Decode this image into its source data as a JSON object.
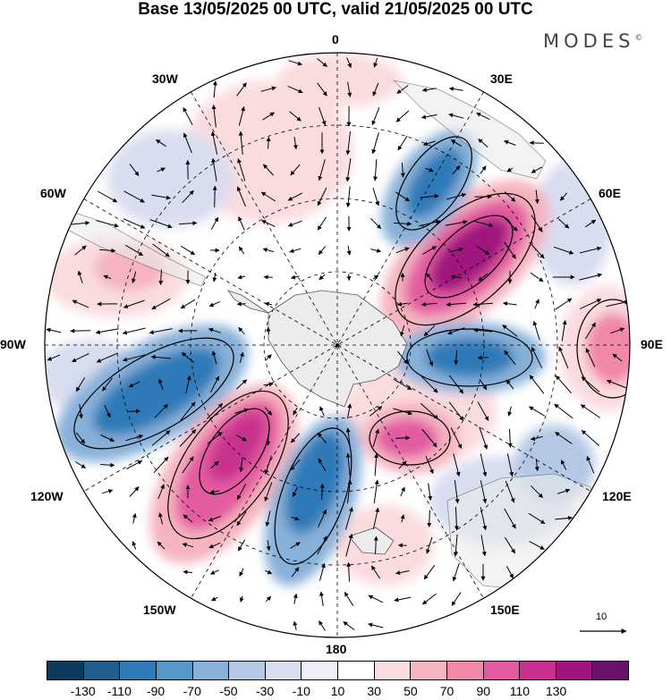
{
  "title": "Base 13/05/2025 00 UTC, valid 21/05/2025 00 UTC",
  "brand": {
    "name": "MODES",
    "mark": "©"
  },
  "longitude_labels": {
    "lon_0": "0",
    "lon_30e": "30E",
    "lon_60e": "60E",
    "lon_90e": "90E",
    "lon_120e": "120E",
    "lon_150e": "150E",
    "lon_180": "180",
    "lon_150w": "150W",
    "lon_120w": "120W",
    "lon_90w": "90W",
    "lon_60w": "60W",
    "lon_30w": "30W"
  },
  "reference_vector": {
    "label": "10"
  },
  "colorbar": {
    "colors": [
      "#0d3b5e",
      "#1f5e8f",
      "#2f7ab8",
      "#5597c9",
      "#88b1d9",
      "#b4c8e5",
      "#d8ddf0",
      "#eeeef8",
      "#ffffff",
      "#fadbde",
      "#f5b4bf",
      "#f088a8",
      "#e35ca0",
      "#c8308f",
      "#a0157f",
      "#6b106b"
    ],
    "ticks": [
      "-130",
      "-110",
      "-90",
      "-70",
      "-50",
      "-30",
      "-10",
      "10",
      "30",
      "50",
      "70",
      "90",
      "110",
      "130"
    ]
  },
  "colors": {
    "land": "#ececec",
    "coast": "#555555",
    "grid": "#000000"
  }
}
